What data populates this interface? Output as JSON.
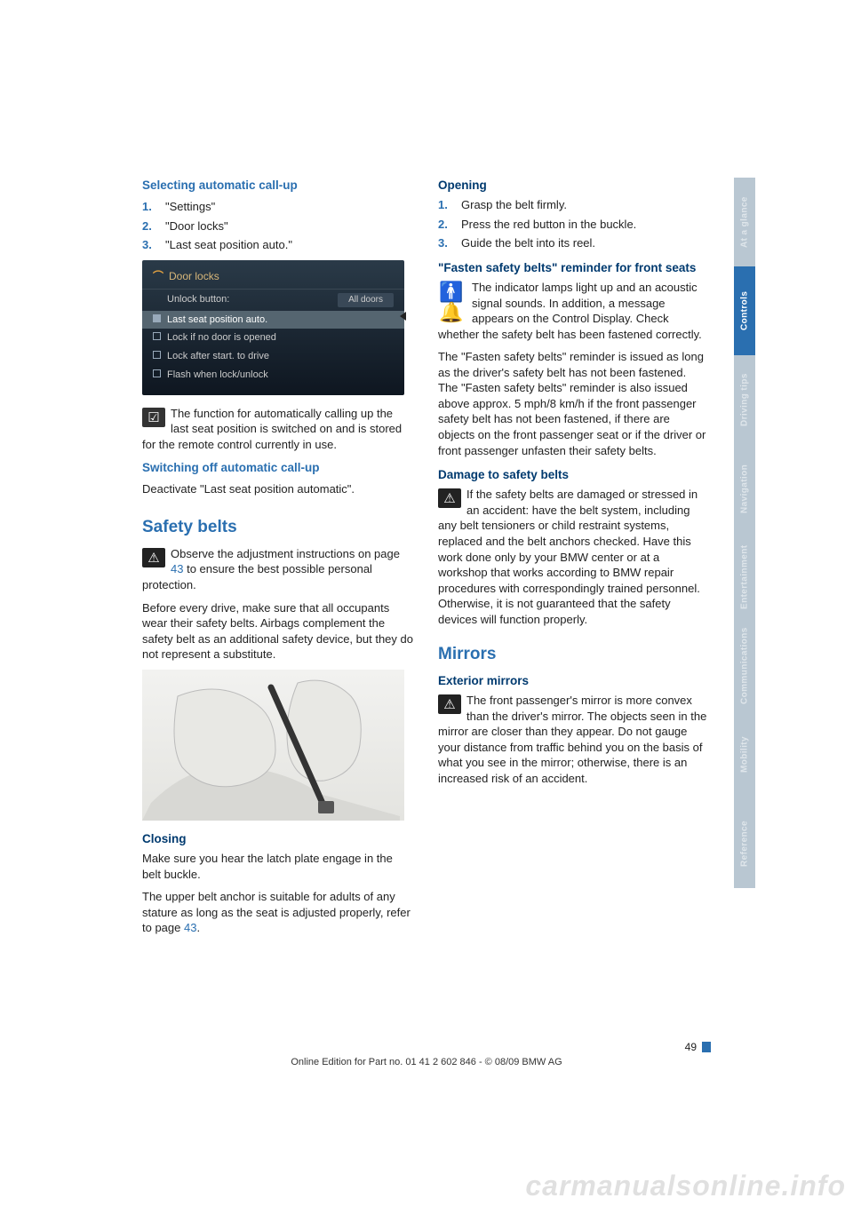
{
  "tabs": [
    {
      "label": "At a glance",
      "bg": "#b9c7d2",
      "active": false
    },
    {
      "label": "Controls",
      "bg": "#2a6fb0",
      "active": true
    },
    {
      "label": "Driving tips",
      "bg": "#b9c7d2",
      "active": false
    },
    {
      "label": "Navigation",
      "bg": "#b9c7d2",
      "active": false
    },
    {
      "label": "Entertainment",
      "bg": "#b9c7d2",
      "active": false
    },
    {
      "label": "Communications",
      "bg": "#b9c7d2",
      "active": false
    },
    {
      "label": "Mobility",
      "bg": "#b9c7d2",
      "active": false
    },
    {
      "label": "Reference",
      "bg": "#b9c7d2",
      "active": false
    }
  ],
  "left": {
    "h_select": "Selecting automatic call-up",
    "steps_select": [
      "\"Settings\"",
      "\"Door locks\"",
      "\"Last seat position auto.\""
    ],
    "idrive": {
      "title": "Door locks",
      "unlock_label": "Unlock button:",
      "unlock_value": "All doors",
      "rows": [
        {
          "label": "Last seat position auto.",
          "selected": true
        },
        {
          "label": "Lock if no door is opened",
          "selected": false
        },
        {
          "label": "Lock after start. to drive",
          "selected": false
        },
        {
          "label": "Flash when lock/unlock",
          "selected": false
        }
      ]
    },
    "func_note": "The function for automatically calling up the last seat position is switched on and is stored for the remote control currently in use.",
    "h_switchoff": "Switching off automatic call-up",
    "switchoff_body": "Deactivate \"Last seat position automatic\".",
    "h_safety": "Safety belts",
    "safety_intro_a": "Observe the adjustment instructions on page ",
    "safety_intro_link": "43",
    "safety_intro_b": " to ensure the best possible personal protection.",
    "safety_p2": "Before every drive, make sure that all occupants wear their safety belts. Airbags complement the safety belt as an additional safety device, but they do not represent a substitute.",
    "h_closing": "Closing",
    "closing_p1": "Make sure you hear the latch plate engage in the belt buckle.",
    "closing_p2a": "The upper belt anchor is suitable for adults of any stature as long as the seat is adjusted properly, refer to page ",
    "closing_p2_link": "43",
    "closing_p2b": "."
  },
  "right": {
    "h_opening": "Opening",
    "steps_opening": [
      "Grasp the belt firmly.",
      "Press the red button in the buckle.",
      "Guide the belt into its reel."
    ],
    "h_fasten": "\"Fasten safety belts\" reminder for front seats",
    "fasten_p1": "The indicator lamps light up and an acoustic signal sounds. In addition, a message appears on the Control Display. Check whether the safety belt has been fastened correctly.",
    "fasten_p2": "The \"Fasten safety belts\" reminder is issued as long as the driver's safety belt has not been fastened. The \"Fasten safety belts\" reminder is also issued above approx. 5 mph/8 km/h if the front passenger safety belt has not been fastened, if there are objects on the front passenger seat or if the driver or front passenger unfasten their safety belts.",
    "h_damage": "Damage to safety belts",
    "damage_p": "If the safety belts are damaged or stressed in an accident: have the belt system, including any belt tensioners or child restraint systems, replaced and the belt anchors checked. Have this work done only by your BMW center or at a workshop that works according to BMW repair procedures with correspondingly trained personnel. Otherwise, it is not guaranteed that the safety devices will function properly.",
    "h_mirrors": "Mirrors",
    "h_ext": "Exterior mirrors",
    "ext_p": "The front passenger's mirror is more convex than the driver's mirror. The objects seen in the mirror are closer than they appear. Do not gauge your distance from traffic behind you on the basis of what you see in the mirror; otherwise, there is an increased risk of an accident."
  },
  "page_number": "49",
  "edition_line": "Online Edition for Part no. 01 41 2 602 846 - © 08/09 BMW AG",
  "watermark": "carmanualsonline.info"
}
